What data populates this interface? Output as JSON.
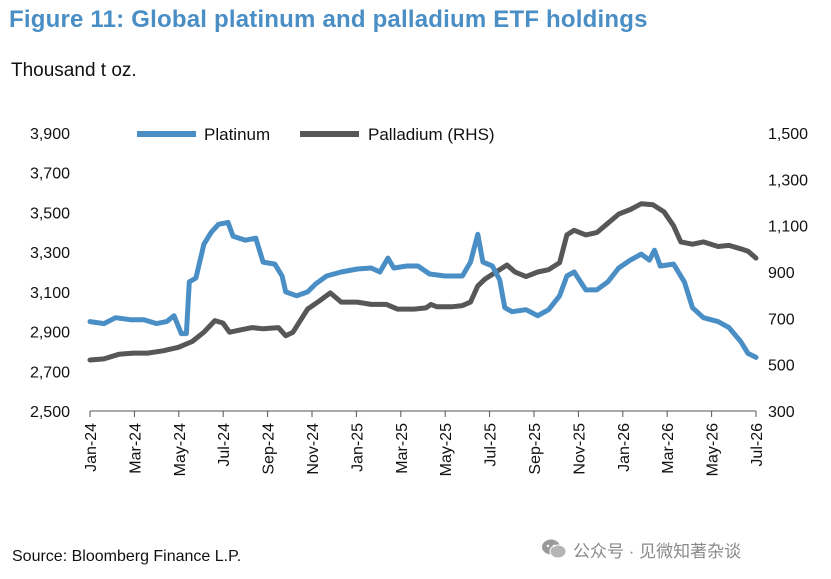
{
  "title": "Figure 11: Global platinum and palladium ETF holdings",
  "unit_label": "Thousand t oz.",
  "source": "Source: Bloomberg Finance L.P.",
  "watermark": "公众号 · 见微知著杂谈",
  "colors": {
    "title": "#4a8ec6",
    "platinum": "#4a8ec6",
    "palladium": "#575757",
    "axis": "#555555"
  },
  "chart_data": {
    "type": "line",
    "legend": [
      "Platinum",
      "Palladium (RHS)"
    ],
    "legend_position": "top",
    "grid": false,
    "x_tick_labels": [
      "Jan-24",
      "Mar-24",
      "May-24",
      "Jul-24",
      "Sep-24",
      "Nov-24",
      "Jan-25",
      "Mar-25",
      "May-25",
      "Jul-25",
      "Sep-25",
      "Nov-25",
      "Jan-26",
      "Mar-26",
      "May-26",
      "Jul-26"
    ],
    "x_range": [
      "2024-01-01",
      "2026-07-01"
    ],
    "y_left": {
      "range": [
        2500,
        3900
      ],
      "ticks": [
        "2,500",
        "2,700",
        "2,900",
        "3,100",
        "3,300",
        "3,500",
        "3,700",
        "3,900"
      ]
    },
    "y_right": {
      "range": [
        300,
        1500
      ],
      "ticks": [
        "300",
        "500",
        "700",
        "900",
        "1,100",
        "1,300",
        "1,500"
      ]
    },
    "series": [
      {
        "name": "Platinum",
        "axis": "left",
        "points": [
          [
            "2024-01-01",
            2950
          ],
          [
            "2024-01-20",
            2940
          ],
          [
            "2024-02-05",
            2970
          ],
          [
            "2024-02-25",
            2960
          ],
          [
            "2024-03-15",
            2960
          ],
          [
            "2024-04-01",
            2940
          ],
          [
            "2024-04-15",
            2950
          ],
          [
            "2024-04-25",
            2980
          ],
          [
            "2024-05-05",
            2890
          ],
          [
            "2024-05-12",
            2890
          ],
          [
            "2024-05-16",
            3150
          ],
          [
            "2024-05-25",
            3170
          ],
          [
            "2024-06-05",
            3340
          ],
          [
            "2024-06-15",
            3400
          ],
          [
            "2024-06-25",
            3440
          ],
          [
            "2024-07-08",
            3450
          ],
          [
            "2024-07-15",
            3380
          ],
          [
            "2024-08-01",
            3360
          ],
          [
            "2024-08-15",
            3370
          ],
          [
            "2024-08-25",
            3250
          ],
          [
            "2024-09-10",
            3240
          ],
          [
            "2024-09-20",
            3180
          ],
          [
            "2024-09-25",
            3100
          ],
          [
            "2024-10-10",
            3080
          ],
          [
            "2024-10-25",
            3100
          ],
          [
            "2024-11-05",
            3140
          ],
          [
            "2024-11-20",
            3180
          ],
          [
            "2024-12-10",
            3200
          ],
          [
            "2025-01-01",
            3215
          ],
          [
            "2025-01-20",
            3220
          ],
          [
            "2025-02-01",
            3200
          ],
          [
            "2025-02-12",
            3270
          ],
          [
            "2025-02-20",
            3220
          ],
          [
            "2025-03-10",
            3230
          ],
          [
            "2025-03-25",
            3230
          ],
          [
            "2025-04-10",
            3190
          ],
          [
            "2025-05-01",
            3180
          ],
          [
            "2025-05-25",
            3180
          ],
          [
            "2025-06-05",
            3250
          ],
          [
            "2025-06-15",
            3390
          ],
          [
            "2025-06-22",
            3250
          ],
          [
            "2025-07-05",
            3230
          ],
          [
            "2025-07-15",
            3160
          ],
          [
            "2025-07-22",
            3020
          ],
          [
            "2025-08-01",
            3000
          ],
          [
            "2025-08-20",
            3010
          ],
          [
            "2025-09-05",
            2980
          ],
          [
            "2025-09-20",
            3010
          ],
          [
            "2025-10-05",
            3080
          ],
          [
            "2025-10-15",
            3180
          ],
          [
            "2025-10-25",
            3200
          ],
          [
            "2025-11-10",
            3110
          ],
          [
            "2025-11-25",
            3110
          ],
          [
            "2025-12-10",
            3150
          ],
          [
            "2025-12-25",
            3220
          ],
          [
            "2026-01-10",
            3260
          ],
          [
            "2026-01-25",
            3290
          ],
          [
            "2026-02-05",
            3260
          ],
          [
            "2026-02-12",
            3310
          ],
          [
            "2026-02-20",
            3230
          ],
          [
            "2026-03-10",
            3240
          ],
          [
            "2026-03-25",
            3150
          ],
          [
            "2026-04-05",
            3020
          ],
          [
            "2026-04-20",
            2970
          ],
          [
            "2026-05-10",
            2950
          ],
          [
            "2026-05-25",
            2920
          ],
          [
            "2026-06-10",
            2850
          ],
          [
            "2026-06-20",
            2790
          ],
          [
            "2026-07-01",
            2770
          ]
        ]
      },
      {
        "name": "Palladium (RHS)",
        "axis": "right",
        "points": [
          [
            "2024-01-01",
            520
          ],
          [
            "2024-01-20",
            525
          ],
          [
            "2024-02-10",
            545
          ],
          [
            "2024-03-01",
            550
          ],
          [
            "2024-03-20",
            550
          ],
          [
            "2024-04-10",
            560
          ],
          [
            "2024-05-01",
            575
          ],
          [
            "2024-05-20",
            600
          ],
          [
            "2024-06-05",
            640
          ],
          [
            "2024-06-20",
            690
          ],
          [
            "2024-07-01",
            680
          ],
          [
            "2024-07-10",
            640
          ],
          [
            "2024-07-25",
            650
          ],
          [
            "2024-08-10",
            660
          ],
          [
            "2024-08-25",
            655
          ],
          [
            "2024-09-15",
            660
          ],
          [
            "2024-09-25",
            625
          ],
          [
            "2024-10-05",
            640
          ],
          [
            "2024-10-15",
            690
          ],
          [
            "2024-10-25",
            740
          ],
          [
            "2024-11-10",
            775
          ],
          [
            "2024-11-25",
            810
          ],
          [
            "2024-12-10",
            770
          ],
          [
            "2025-01-01",
            770
          ],
          [
            "2025-01-20",
            760
          ],
          [
            "2025-02-10",
            760
          ],
          [
            "2025-02-25",
            740
          ],
          [
            "2025-03-20",
            740
          ],
          [
            "2025-04-05",
            745
          ],
          [
            "2025-04-12",
            760
          ],
          [
            "2025-04-20",
            750
          ],
          [
            "2025-05-10",
            750
          ],
          [
            "2025-05-25",
            755
          ],
          [
            "2025-06-05",
            770
          ],
          [
            "2025-06-15",
            840
          ],
          [
            "2025-06-25",
            870
          ],
          [
            "2025-07-10",
            900
          ],
          [
            "2025-07-25",
            930
          ],
          [
            "2025-08-05",
            900
          ],
          [
            "2025-08-20",
            880
          ],
          [
            "2025-09-05",
            900
          ],
          [
            "2025-09-20",
            910
          ],
          [
            "2025-10-05",
            940
          ],
          [
            "2025-10-15",
            1060
          ],
          [
            "2025-10-25",
            1080
          ],
          [
            "2025-11-10",
            1060
          ],
          [
            "2025-11-25",
            1070
          ],
          [
            "2025-12-10",
            1110
          ],
          [
            "2025-12-25",
            1150
          ],
          [
            "2026-01-10",
            1170
          ],
          [
            "2026-01-25",
            1195
          ],
          [
            "2026-02-10",
            1190
          ],
          [
            "2026-02-25",
            1160
          ],
          [
            "2026-03-10",
            1100
          ],
          [
            "2026-03-20",
            1030
          ],
          [
            "2026-04-05",
            1020
          ],
          [
            "2026-04-20",
            1030
          ],
          [
            "2026-05-10",
            1010
          ],
          [
            "2026-05-25",
            1015
          ],
          [
            "2026-06-10",
            1000
          ],
          [
            "2026-06-20",
            990
          ],
          [
            "2026-07-01",
            960
          ]
        ]
      }
    ]
  }
}
